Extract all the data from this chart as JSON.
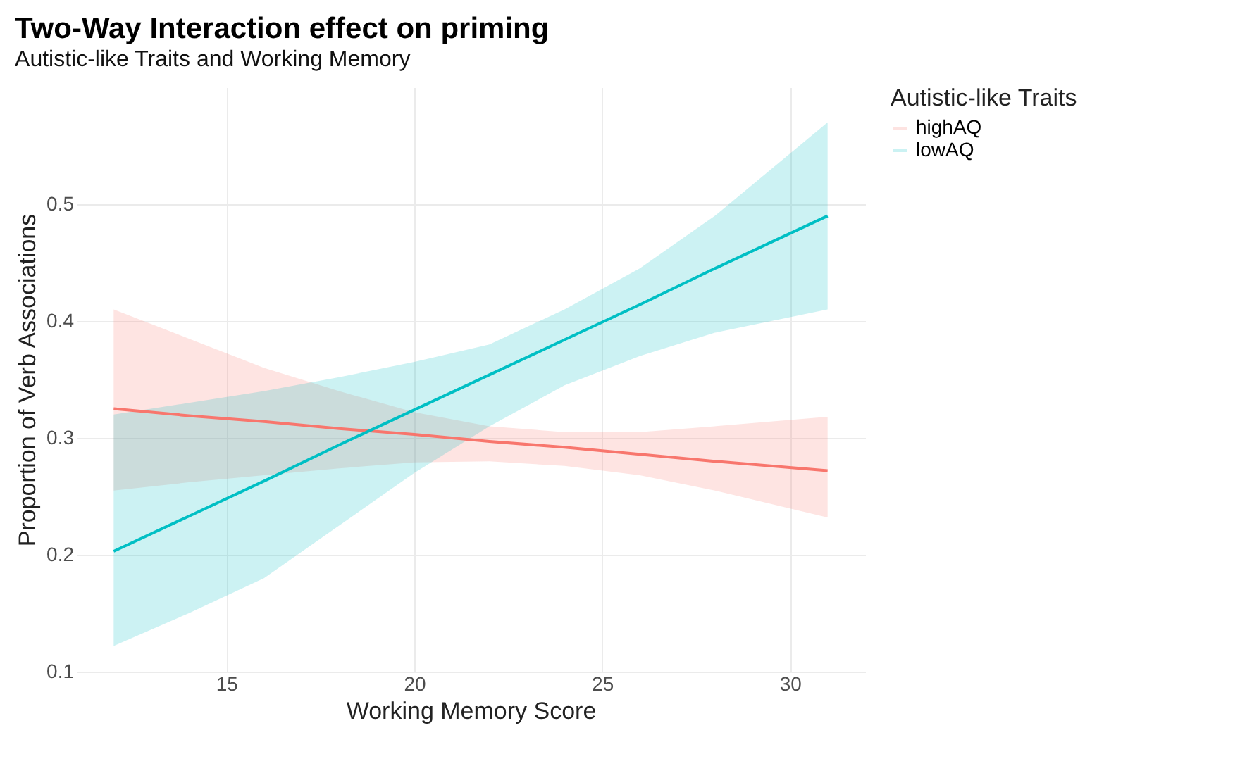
{
  "chart_data": {
    "type": "line",
    "title": "Two-Way Interaction effect on priming",
    "subtitle": "Autistic-like Traits and Working Memory",
    "xlabel": "Working Memory Score",
    "ylabel": "Proportion of Verb Associations",
    "legend_title": "Autistic-like Traits",
    "x": [
      12,
      14,
      16,
      18,
      20,
      22,
      24,
      26,
      28,
      31
    ],
    "series": [
      {
        "name": "highAQ",
        "color": "#f8766d",
        "values": [
          0.325,
          0.319,
          0.314,
          0.308,
          0.303,
          0.297,
          0.292,
          0.286,
          0.28,
          0.272
        ],
        "lower": [
          0.255,
          0.262,
          0.268,
          0.274,
          0.279,
          0.28,
          0.276,
          0.268,
          0.255,
          0.232
        ],
        "upper": [
          0.41,
          0.385,
          0.36,
          0.34,
          0.322,
          0.31,
          0.305,
          0.305,
          0.31,
          0.318
        ]
      },
      {
        "name": "lowAQ",
        "color": "#00bfc4",
        "values": [
          0.203,
          0.233,
          0.263,
          0.294,
          0.324,
          0.354,
          0.384,
          0.414,
          0.445,
          0.49
        ],
        "lower": [
          0.122,
          0.15,
          0.18,
          0.225,
          0.27,
          0.31,
          0.345,
          0.37,
          0.39,
          0.41
        ],
        "upper": [
          0.32,
          0.33,
          0.34,
          0.352,
          0.365,
          0.38,
          0.41,
          0.445,
          0.49,
          0.57
        ]
      }
    ],
    "xlim": [
      11,
      32
    ],
    "ylim": [
      0.1,
      0.6
    ],
    "xticks": [
      15,
      20,
      25,
      30
    ],
    "yticks": [
      0.1,
      0.2,
      0.3,
      0.4,
      0.5
    ],
    "grid": true,
    "legend": "right",
    "line_style": "solid",
    "marker": "none"
  }
}
